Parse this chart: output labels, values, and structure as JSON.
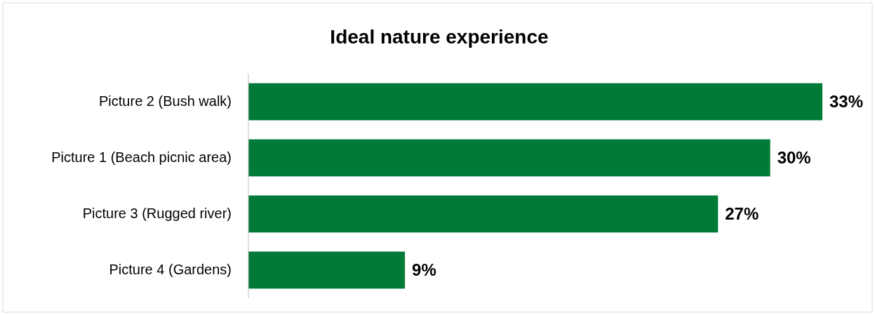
{
  "chart_data": {
    "type": "bar",
    "orientation": "horizontal",
    "title": "Ideal nature experience",
    "categories": [
      "Picture 2 (Bush walk)",
      "Picture 1 (Beach picnic area)",
      "Picture 3 (Rugged river)",
      "Picture 4 (Gardens)"
    ],
    "values": [
      33,
      30,
      27,
      9
    ],
    "value_labels": [
      "33%",
      "30%",
      "27%",
      "9%"
    ],
    "color": "#007a37",
    "tick_labels": "y"
  }
}
